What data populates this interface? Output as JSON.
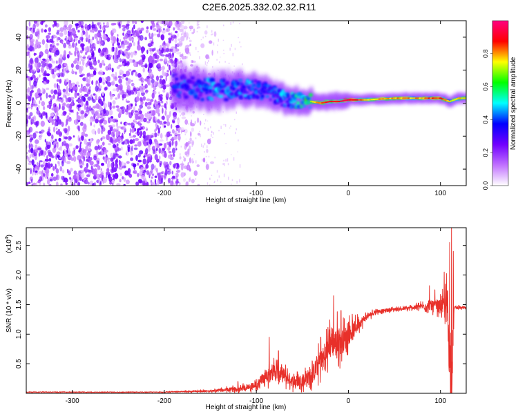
{
  "title": "C2E6.2025.332.02.32.R11",
  "chart_data": [
    {
      "type": "heatmap",
      "title": "",
      "xlabel": "Height of straight line (km)",
      "ylabel": "Frequency (Hz)",
      "xlim": [
        -350,
        128
      ],
      "ylim": [
        -50,
        50
      ],
      "xticks": [
        -300,
        -200,
        -100,
        0,
        100
      ],
      "yticks": [
        -40,
        -20,
        0,
        20,
        40
      ],
      "colorbar": {
        "label": "Normalized spectral amplitude",
        "range": [
          0,
          1
        ],
        "ticks": [
          "0.0",
          "0.2",
          "0.4",
          "0.6",
          "0.8"
        ],
        "colors": [
          "#ffffff",
          "#c070ff",
          "#7000ff",
          "#0000ff",
          "#00ffff",
          "#00ff00",
          "#ffff00",
          "#ff0000",
          "#ff0080"
        ]
      },
      "ridge": {
        "x": [
          -190,
          -170,
          -150,
          -130,
          -110,
          -90,
          -70,
          -50,
          -40,
          -30,
          -20,
          -10,
          0,
          20,
          50,
          80,
          100,
          110,
          120,
          128
        ],
        "freq": [
          11,
          9,
          8,
          8,
          9,
          7,
          3,
          1,
          1,
          0,
          1,
          1,
          2,
          2,
          3,
          3,
          3,
          1,
          3,
          3
        ],
        "peak_amplitude": [
          0.45,
          0.45,
          0.5,
          0.5,
          0.5,
          0.45,
          0.5,
          0.6,
          0.7,
          0.8,
          0.85,
          0.85,
          0.9,
          0.7,
          0.75,
          0.75,
          0.8,
          0.7,
          0.7,
          0.7
        ]
      }
    },
    {
      "type": "line",
      "title": "",
      "xlabel": "Height of straight line (km)",
      "ylabel": "SNR (10 * v/v)",
      "yscale_label": "(x10",
      "yscale_exponent": "4",
      "scale_suffix": ")",
      "xlim": [
        -350,
        128
      ],
      "ylim": [
        0,
        2.8
      ],
      "xticks": [
        -300,
        -200,
        -100,
        0,
        100
      ],
      "yticks": [
        0.5,
        1.0,
        1.5,
        2.0,
        2.5
      ],
      "series": [
        {
          "color": "#e8302a",
          "x": [
            -350,
            -300,
            -250,
            -200,
            -150,
            -120,
            -100,
            -90,
            -80,
            -70,
            -60,
            -50,
            -40,
            -30,
            -25,
            -20,
            -15,
            -10,
            -5,
            0,
            5,
            10,
            20,
            30,
            40,
            50,
            60,
            70,
            80,
            90,
            100,
            105,
            108,
            110,
            112,
            115,
            120,
            128
          ],
          "y": [
            0.02,
            0.02,
            0.02,
            0.02,
            0.04,
            0.07,
            0.14,
            0.3,
            0.38,
            0.3,
            0.2,
            0.22,
            0.3,
            0.55,
            0.6,
            0.9,
            0.85,
            0.85,
            0.9,
            1.0,
            1.05,
            1.15,
            1.3,
            1.38,
            1.4,
            1.42,
            1.43,
            1.45,
            1.47,
            1.48,
            1.48,
            1.45,
            1.4,
            0.6,
            0.2,
            1.45,
            1.45,
            1.44
          ],
          "noise": [
            0.01,
            0.01,
            0.01,
            0.01,
            0.03,
            0.08,
            0.12,
            0.22,
            0.3,
            0.25,
            0.18,
            0.2,
            0.3,
            0.4,
            0.45,
            0.5,
            0.5,
            0.45,
            0.4,
            0.35,
            0.3,
            0.2,
            0.1,
            0.06,
            0.05,
            0.05,
            0.05,
            0.06,
            0.1,
            0.15,
            0.2,
            0.4,
            0.9,
            1.1,
            1.2,
            0.06,
            0.04,
            0.03
          ],
          "spikes": [
            [
              -120,
              0.2
            ],
            [
              -86,
              0.95
            ],
            [
              -76,
              0.72
            ],
            [
              -30,
              0.95
            ],
            [
              -24,
              1.08
            ],
            [
              -16,
              1.65
            ],
            [
              -12,
              1.38
            ],
            [
              -8,
              1.4
            ],
            [
              88,
              1.82
            ],
            [
              94,
              1.75
            ],
            [
              104,
              2.05
            ],
            [
              110,
              2.55
            ],
            [
              112,
              2.8
            ],
            [
              114,
              2.4
            ]
          ]
        }
      ]
    }
  ]
}
